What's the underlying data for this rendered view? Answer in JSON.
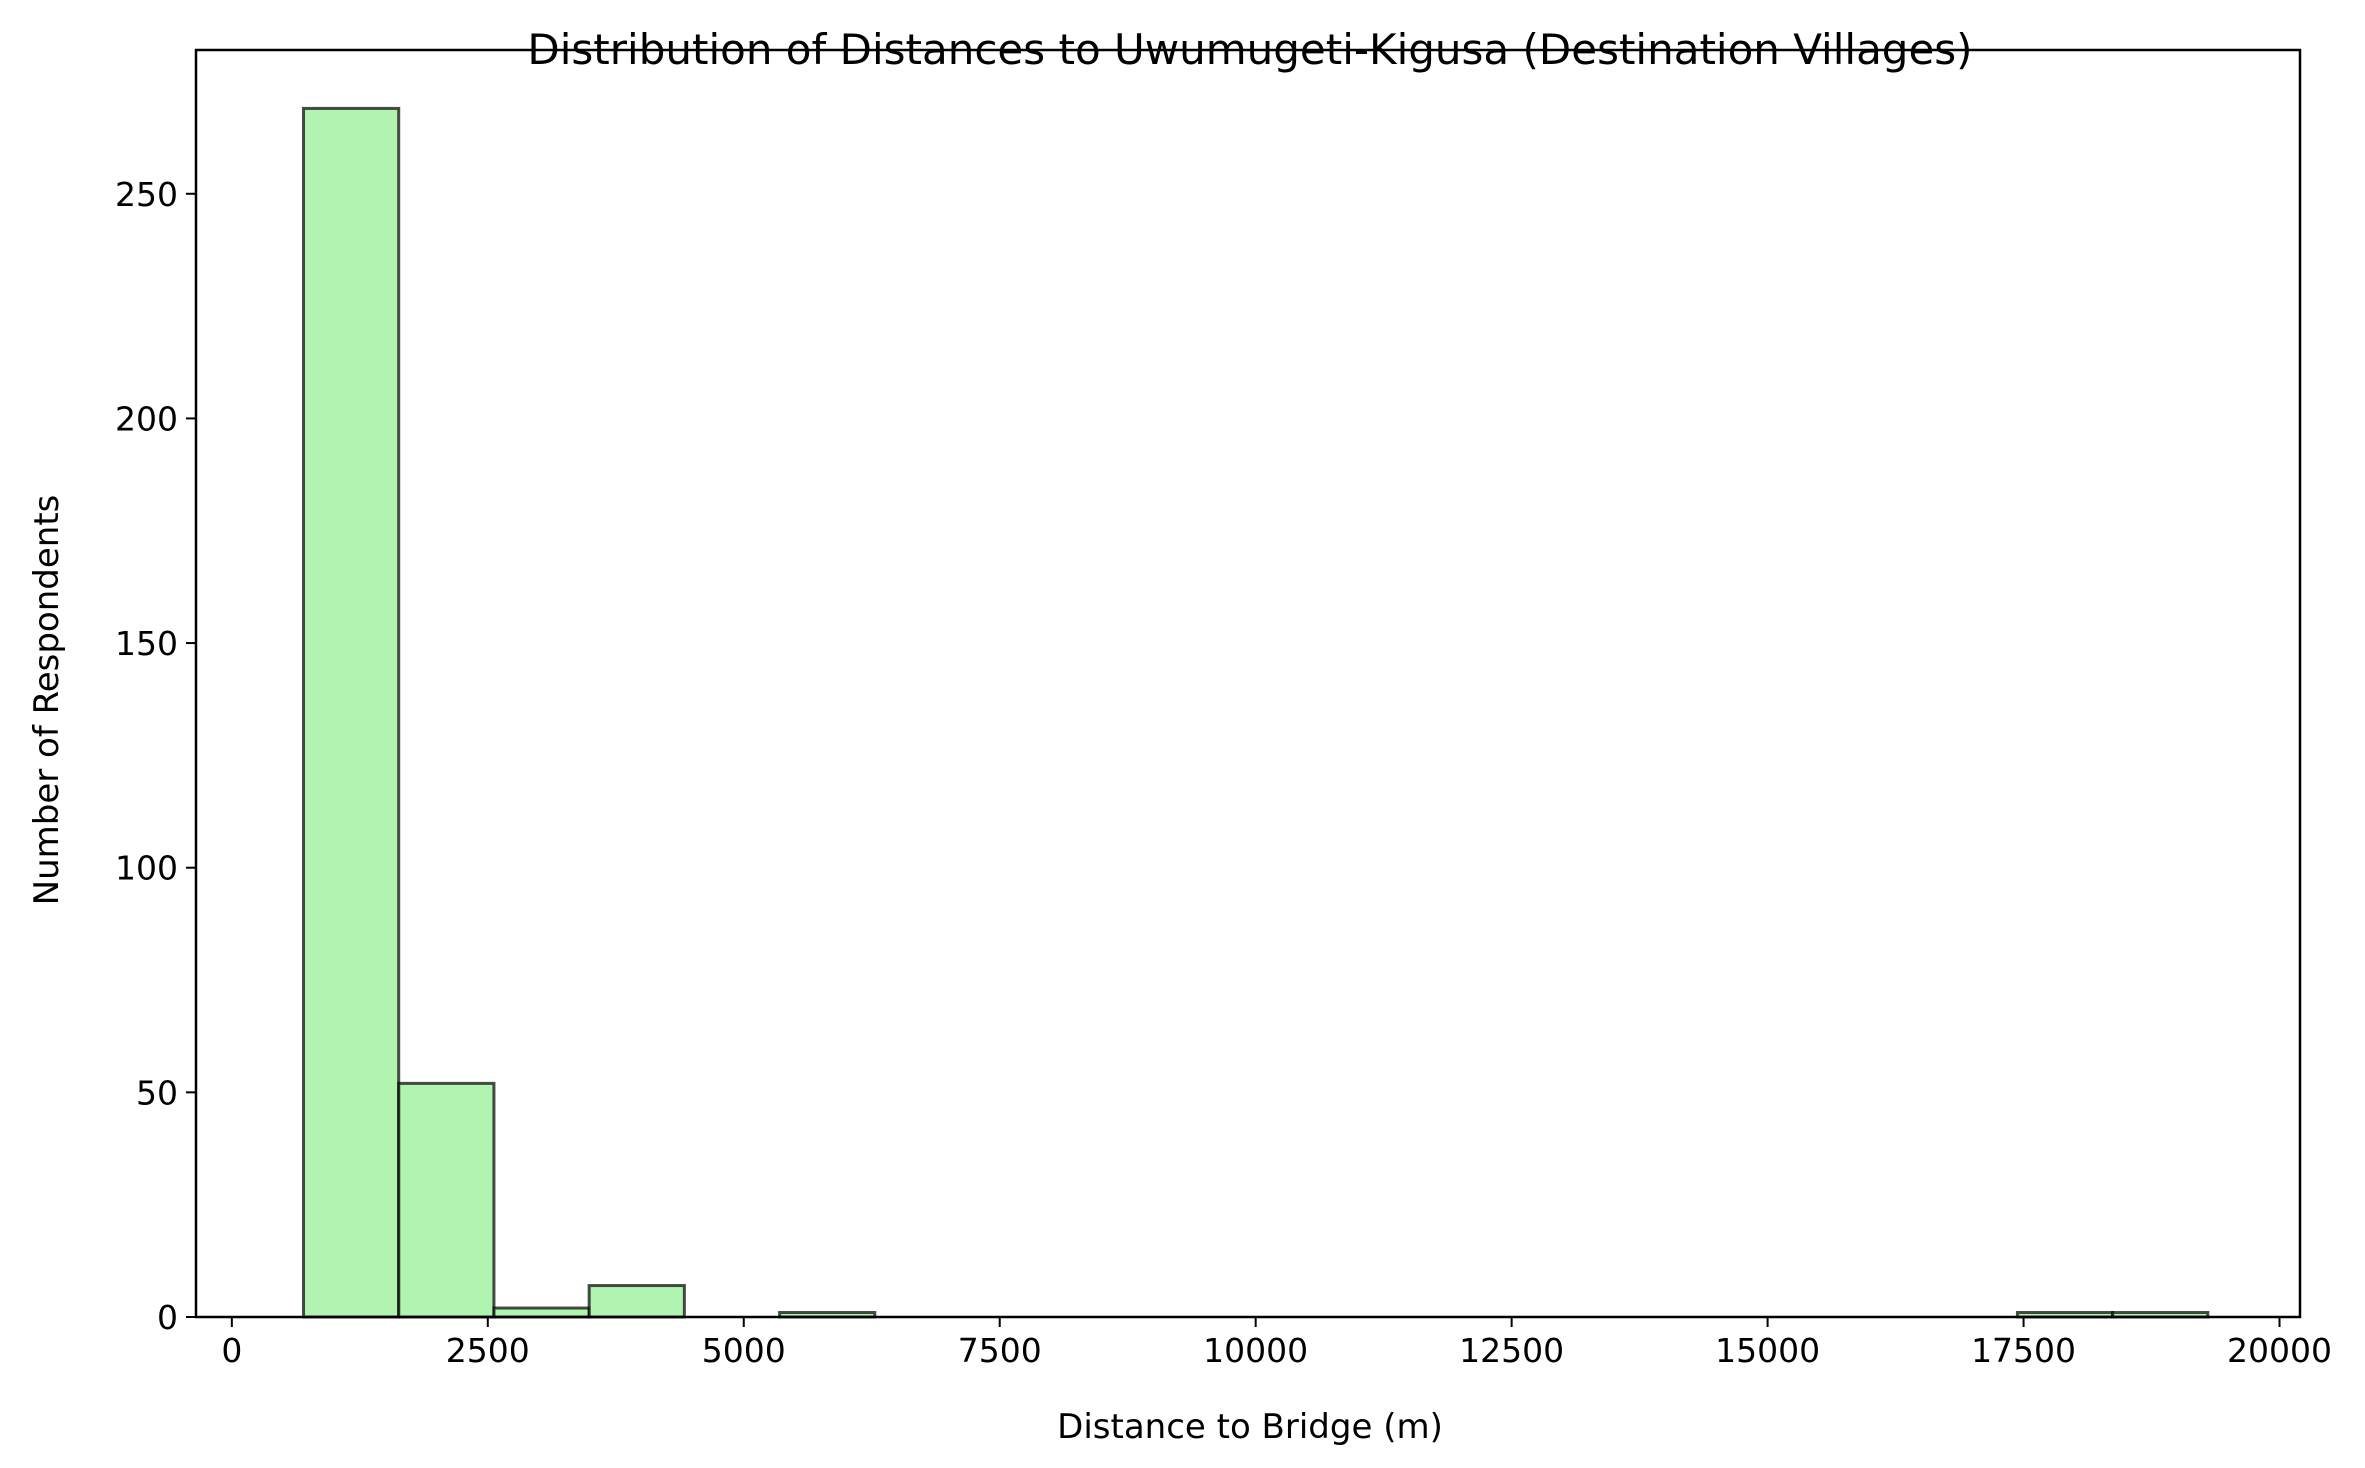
{
  "chart_data": {
    "type": "bar",
    "title": "Distribution of Distances to Uwumugeti-Kigusa (Destination Villages)",
    "xlabel": "Distance to Bridge (m)",
    "ylabel": "Number of Respondents",
    "xlim": [
      -350,
      20200
    ],
    "ylim": [
      0,
      282
    ],
    "xticks": [
      0,
      2500,
      5000,
      7500,
      10000,
      12500,
      15000,
      17500,
      20000
    ],
    "yticks": [
      0,
      50,
      100,
      150,
      200,
      250
    ],
    "bins": [
      {
        "start": 700,
        "end": 1630,
        "count": 269
      },
      {
        "start": 1630,
        "end": 2560,
        "count": 52
      },
      {
        "start": 2560,
        "end": 3490,
        "count": 2
      },
      {
        "start": 3490,
        "end": 4420,
        "count": 7
      },
      {
        "start": 4420,
        "end": 5350,
        "count": 0
      },
      {
        "start": 5350,
        "end": 6280,
        "count": 1
      },
      {
        "start": 6280,
        "end": 7210,
        "count": 0
      },
      {
        "start": 7210,
        "end": 8140,
        "count": 0
      },
      {
        "start": 8140,
        "end": 9070,
        "count": 0
      },
      {
        "start": 9070,
        "end": 10000,
        "count": 0
      },
      {
        "start": 10000,
        "end": 10930,
        "count": 0
      },
      {
        "start": 10930,
        "end": 11860,
        "count": 0
      },
      {
        "start": 11860,
        "end": 12790,
        "count": 0
      },
      {
        "start": 12790,
        "end": 13720,
        "count": 0
      },
      {
        "start": 13720,
        "end": 14650,
        "count": 0
      },
      {
        "start": 14650,
        "end": 15580,
        "count": 0
      },
      {
        "start": 15580,
        "end": 16510,
        "count": 0
      },
      {
        "start": 16510,
        "end": 17440,
        "count": 0
      },
      {
        "start": 17440,
        "end": 18370,
        "count": 1
      },
      {
        "start": 18370,
        "end": 19300,
        "count": 1
      }
    ],
    "bar_color": "#90ee90",
    "bar_opacity": 0.7,
    "edge_color": "#000000",
    "grid": false,
    "legend": "none"
  }
}
